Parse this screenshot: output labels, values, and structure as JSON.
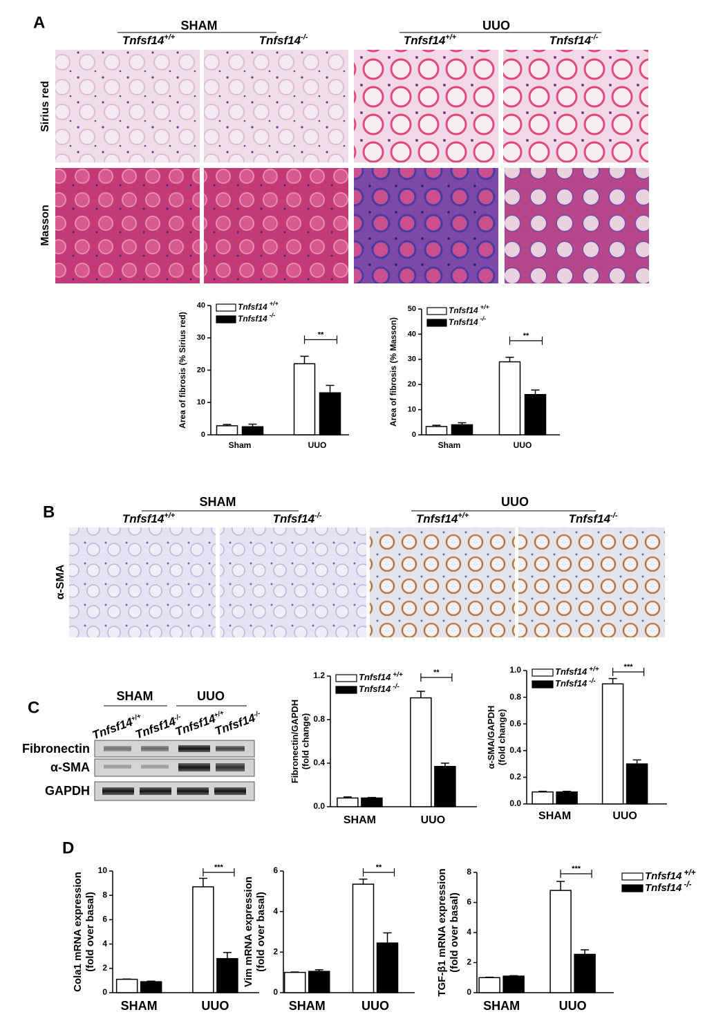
{
  "panel_a": {
    "label": "A",
    "groups": [
      "SHAM",
      "UUO"
    ],
    "genotypes": [
      {
        "name": "Tnfsf14",
        "superscript": "+/+"
      },
      {
        "name": "Tnfsf14",
        "superscript": "-/-"
      },
      {
        "name": "Tnfsf14",
        "superscript": "+/+"
      },
      {
        "name": "Tnfsf14",
        "superscript": "-/-"
      }
    ],
    "rows": [
      "Sirius red",
      "Masson"
    ]
  },
  "panel_b": {
    "label": "B",
    "groups": [
      "SHAM",
      "UUO"
    ],
    "genotypes": [
      {
        "name": "Tnfsf14",
        "superscript": "+/+"
      },
      {
        "name": "Tnfsf14",
        "superscript": "-/-"
      },
      {
        "name": "Tnfsf14",
        "superscript": "+/+"
      },
      {
        "name": "Tnfsf14",
        "superscript": "-/-"
      }
    ],
    "rows": [
      "α-SMA"
    ]
  },
  "panel_c": {
    "label": "C",
    "groups": [
      "SHAM",
      "UUO"
    ],
    "lanes": [
      {
        "name": "Tnfsf14",
        "superscript": "+/+"
      },
      {
        "name": "Tnfsf14",
        "superscript": "-/-"
      },
      {
        "name": "Tnfsf14",
        "superscript": "+/+"
      },
      {
        "name": "Tnfsf14",
        "superscript": "-/-"
      }
    ],
    "bands": [
      "Fibronectin",
      "α-SMA",
      "GAPDH"
    ]
  },
  "panel_d": {
    "label": "D"
  },
  "chart_data": [
    {
      "type": "bar",
      "ylabel": [
        "Area of fibrosis (% Sirius red)"
      ],
      "categories": [
        "Sham",
        "UUO"
      ],
      "series": [
        {
          "name": "Tnfsf14",
          "superscript": "+/+",
          "color": "#ffffff",
          "values": [
            2.8,
            22
          ],
          "errors": [
            0.4,
            2.3
          ]
        },
        {
          "name": "Tnfsf14",
          "superscript": "-/-",
          "color": "#000000",
          "values": [
            2.5,
            13
          ],
          "errors": [
            0.8,
            2.3
          ]
        }
      ],
      "ylim": [
        0,
        40
      ],
      "yticks": [
        0,
        10,
        20,
        30,
        40
      ],
      "significance": "**",
      "legend": "upper left"
    },
    {
      "type": "bar",
      "ylabel": [
        "Area of fibrosis (% Masson)"
      ],
      "categories": [
        "Sham",
        "UUO"
      ],
      "series": [
        {
          "name": "Tnfsf14",
          "superscript": "+/+",
          "color": "#ffffff",
          "values": [
            3.3,
            29
          ],
          "errors": [
            0.5,
            1.8
          ]
        },
        {
          "name": "Tnfsf14",
          "superscript": "-/-",
          "color": "#000000",
          "values": [
            4,
            16
          ],
          "errors": [
            0.8,
            1.8
          ]
        }
      ],
      "ylim": [
        0,
        50
      ],
      "yticks": [
        0,
        10,
        20,
        30,
        40,
        50
      ],
      "significance": "**",
      "legend": "upper left"
    },
    {
      "type": "bar",
      "ylabel": [
        "Fibronectin/GAPDH",
        "(fold change)"
      ],
      "categories": [
        "SHAM",
        "UUO"
      ],
      "series": [
        {
          "name": "Tnfsf14",
          "superscript": "+/+",
          "color": "#ffffff",
          "values": [
            0.08,
            1.0
          ],
          "errors": [
            0.01,
            0.06
          ]
        },
        {
          "name": "Tnfsf14",
          "superscript": "-/-",
          "color": "#000000",
          "values": [
            0.08,
            0.37
          ],
          "errors": [
            0.005,
            0.03
          ]
        }
      ],
      "ylim": [
        0,
        1.2
      ],
      "yticks": [
        {
          "value": 0,
          "label": "0.0"
        },
        0.4,
        0.8,
        1.2
      ],
      "significance": "**",
      "legend": "upper left"
    },
    {
      "type": "bar",
      "ylabel": [
        "α-SMA/GAPDH",
        "(fold change)"
      ],
      "categories": [
        "SHAM",
        "UUO"
      ],
      "series": [
        {
          "name": "Tnfsf14",
          "superscript": "+/+",
          "color": "#ffffff",
          "values": [
            0.09,
            0.9
          ],
          "errors": [
            0.005,
            0.04
          ]
        },
        {
          "name": "Tnfsf14",
          "superscript": "-/-",
          "color": "#000000",
          "values": [
            0.09,
            0.3
          ],
          "errors": [
            0.005,
            0.03
          ]
        }
      ],
      "ylim": [
        0,
        1
      ],
      "yticks": [
        {
          "value": 0,
          "label": "0.0"
        },
        0.2,
        0.4,
        0.6,
        0.8,
        {
          "value": 1,
          "label": "1.0"
        }
      ],
      "significance": "***",
      "legend": "upper left"
    },
    {
      "type": "bar",
      "ylabel": [
        "Cola1 mRNA expression",
        "(fold over basal)"
      ],
      "categories": [
        "SHAM",
        "UUO"
      ],
      "series": [
        {
          "name": "Tnfsf14",
          "superscript": "+/+",
          "color": "#ffffff",
          "values": [
            1.1,
            8.7
          ],
          "errors": [
            0.02,
            0.7
          ]
        },
        {
          "name": "Tnfsf14",
          "superscript": "-/-",
          "color": "#000000",
          "values": [
            0.9,
            2.8
          ],
          "errors": [
            0.05,
            0.5
          ]
        }
      ],
      "ylim": [
        0,
        10
      ],
      "yticks": [
        0,
        2,
        4,
        6,
        8,
        10
      ],
      "significance": "***",
      "legend": false
    },
    {
      "type": "bar",
      "ylabel": [
        "Vim mRNA expression",
        "(fold over basal)"
      ],
      "categories": [
        "SHAM",
        "UUO"
      ],
      "series": [
        {
          "name": "Tnfsf14",
          "superscript": "+/+",
          "color": "#ffffff",
          "values": [
            1.0,
            5.35
          ],
          "errors": [
            0.02,
            0.25
          ]
        },
        {
          "name": "Tnfsf14",
          "superscript": "-/-",
          "color": "#000000",
          "values": [
            1.05,
            2.45
          ],
          "errors": [
            0.08,
            0.5
          ]
        }
      ],
      "ylim": [
        0,
        6
      ],
      "yticks": [
        0,
        2,
        4,
        6
      ],
      "significance": "**",
      "legend": false
    },
    {
      "type": "bar",
      "ylabel": [
        "TGF-β1 mRNA expression",
        "(fold over basal)"
      ],
      "categories": [
        "SHAM",
        "UUO"
      ],
      "series": [
        {
          "name": "Tnfsf14",
          "superscript": "+/+",
          "color": "#ffffff",
          "values": [
            1.0,
            6.8
          ],
          "errors": [
            0.03,
            0.6
          ]
        },
        {
          "name": "Tnfsf14",
          "superscript": "-/-",
          "color": "#000000",
          "values": [
            1.1,
            2.55
          ],
          "errors": [
            0.03,
            0.3
          ]
        }
      ],
      "ylim": [
        0,
        8
      ],
      "yticks": [
        0,
        2,
        4,
        6,
        8
      ],
      "significance": "***",
      "legend": "right"
    }
  ]
}
